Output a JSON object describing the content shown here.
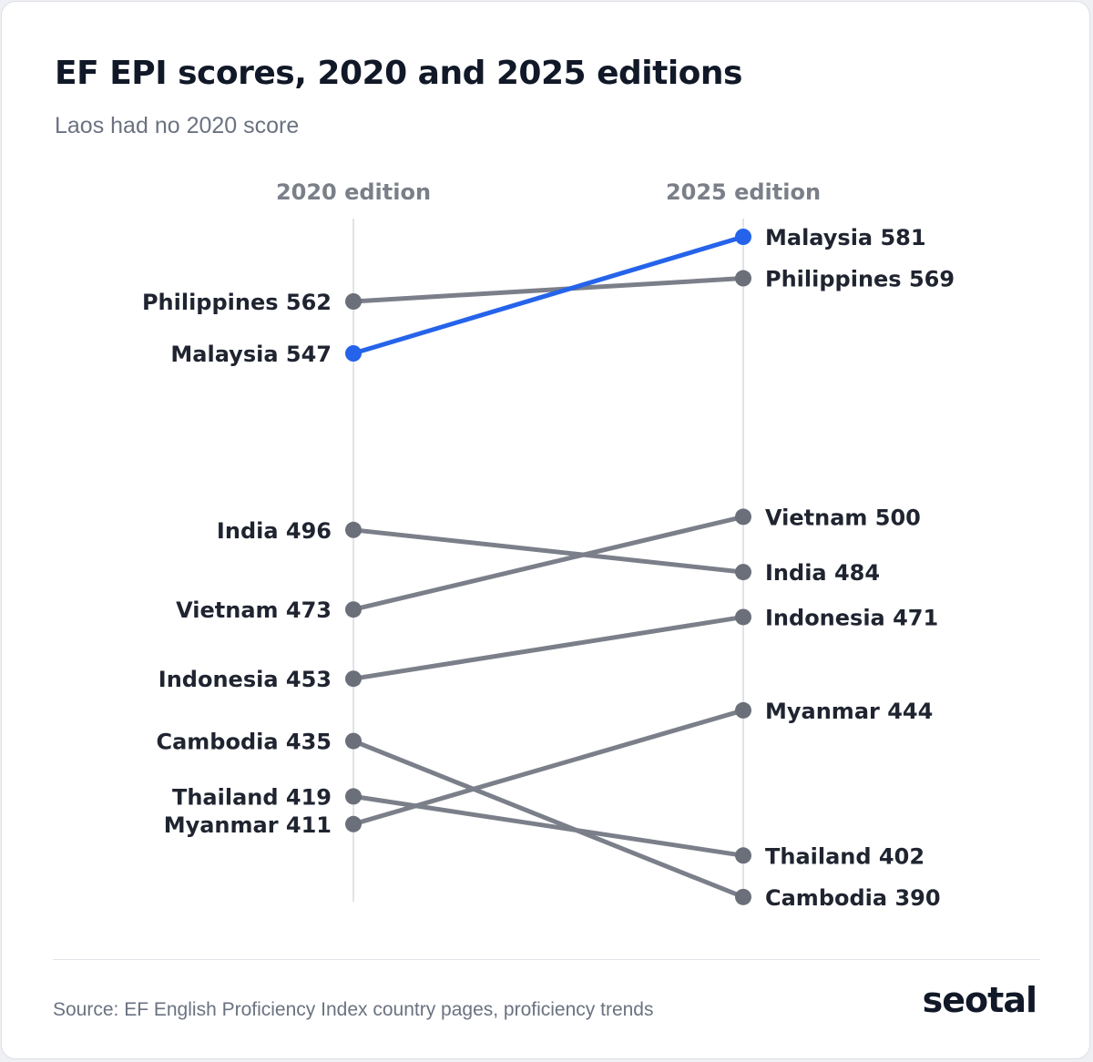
{
  "title": "EF EPI scores, 2020 and 2025 editions",
  "subtitle": "Laos had no 2020 score",
  "source": "Source: EF English Proficiency Index country pages, proficiency trends",
  "brand": "seotal",
  "colors": {
    "highlight": "#2563eb",
    "muted_line": "#7b7f89",
    "dot": "#6b6f7a",
    "axis": "#e1e3e7"
  },
  "chart_data": {
    "type": "slope",
    "columns": [
      "2020 edition",
      "2025 edition"
    ],
    "highlight": "Malaysia",
    "series": [
      {
        "name": "Malaysia",
        "values": [
          547,
          581
        ]
      },
      {
        "name": "Philippines",
        "values": [
          562,
          569
        ]
      },
      {
        "name": "India",
        "values": [
          496,
          484
        ]
      },
      {
        "name": "Vietnam",
        "values": [
          473,
          500
        ]
      },
      {
        "name": "Indonesia",
        "values": [
          453,
          471
        ]
      },
      {
        "name": "Cambodia",
        "values": [
          435,
          390
        ]
      },
      {
        "name": "Thailand",
        "values": [
          419,
          402
        ]
      },
      {
        "name": "Myanmar",
        "values": [
          411,
          444
        ]
      }
    ]
  }
}
